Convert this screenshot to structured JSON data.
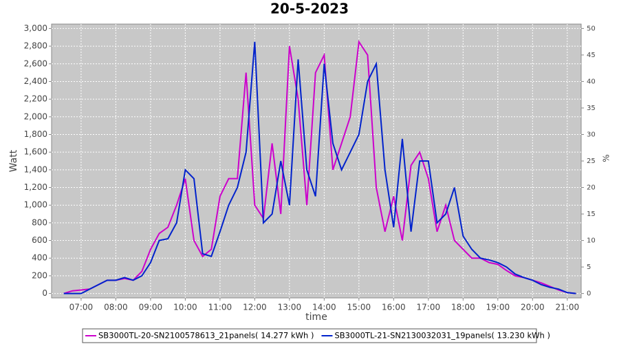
{
  "chart_data": {
    "type": "line",
    "title": "20-5-2023",
    "x_label": "time",
    "y_label": "Watt",
    "y2_label": "%",
    "x": [
      "06:30",
      "06:45",
      "07:00",
      "07:15",
      "07:30",
      "07:45",
      "08:00",
      "08:15",
      "08:30",
      "08:45",
      "09:00",
      "09:15",
      "09:30",
      "09:45",
      "10:00",
      "10:15",
      "10:30",
      "10:45",
      "11:00",
      "11:15",
      "11:30",
      "11:45",
      "12:00",
      "12:15",
      "12:30",
      "12:45",
      "13:00",
      "13:15",
      "13:30",
      "13:45",
      "14:00",
      "14:15",
      "14:30",
      "14:45",
      "15:00",
      "15:15",
      "15:30",
      "15:45",
      "16:00",
      "16:15",
      "16:30",
      "16:45",
      "17:00",
      "17:15",
      "17:30",
      "17:45",
      "18:00",
      "18:15",
      "18:30",
      "18:45",
      "19:00",
      "19:15",
      "19:30",
      "19:45",
      "20:00",
      "20:15",
      "20:30",
      "20:45",
      "21:00",
      "21:15"
    ],
    "series": [
      {
        "name": "SB3000TL-20-SN2100578613_21panels( 14.277 kWh )",
        "color": "#cc00cc",
        "values": [
          0,
          30,
          40,
          50,
          100,
          150,
          150,
          170,
          150,
          250,
          500,
          680,
          750,
          1000,
          1300,
          600,
          420,
          500,
          1100,
          1300,
          1300,
          2500,
          1000,
          850,
          1700,
          900,
          2800,
          2200,
          1000,
          2500,
          2700,
          1400,
          1700,
          2000,
          2850,
          2700,
          1200,
          700,
          1100,
          600,
          1450,
          1600,
          1300,
          700,
          1000,
          600,
          500,
          400,
          400,
          350,
          330,
          260,
          200,
          180,
          150,
          120,
          80,
          40,
          10,
          0
        ]
      },
      {
        "name": "SB3000TL-21-SN2130032031_19panels( 13.230 kWh )",
        "color": "#0022cc",
        "values": [
          0,
          0,
          0,
          50,
          100,
          150,
          150,
          180,
          150,
          200,
          350,
          600,
          620,
          800,
          1400,
          1300,
          450,
          420,
          700,
          1000,
          1200,
          1600,
          2850,
          800,
          900,
          1500,
          1000,
          2650,
          1400,
          1100,
          2600,
          1700,
          1400,
          1600,
          1800,
          2400,
          2600,
          1400,
          750,
          1750,
          700,
          1500,
          1500,
          800,
          900,
          1200,
          650,
          500,
          400,
          380,
          350,
          300,
          220,
          180,
          150,
          100,
          70,
          50,
          10,
          0
        ]
      }
    ],
    "xlim": [
      "06:09",
      "21:24"
    ],
    "xticks": [
      "07:00",
      "08:00",
      "09:00",
      "10:00",
      "11:00",
      "12:00",
      "13:00",
      "14:00",
      "15:00",
      "16:00",
      "17:00",
      "18:00",
      "19:00",
      "20:00",
      "21:00"
    ],
    "ylim": [
      -50,
      3050
    ],
    "yticks": [
      0,
      200,
      400,
      600,
      800,
      {
        "value": 1000,
        "label": "1,000"
      },
      {
        "value": 1200,
        "label": "1,200"
      },
      {
        "value": 1400,
        "label": "1,400"
      },
      {
        "value": 1600,
        "label": "1,600"
      },
      {
        "value": 1800,
        "label": "1,800"
      },
      {
        "value": 2000,
        "label": "2,000"
      },
      {
        "value": 2200,
        "label": "2,200"
      },
      {
        "value": 2400,
        "label": "2,400"
      },
      {
        "value": 2600,
        "label": "2,600"
      },
      {
        "value": 2800,
        "label": "2,800"
      },
      {
        "value": 3000,
        "label": "3,000"
      }
    ],
    "y2lim": [
      -0.83,
      50.83
    ],
    "y2ticks": [
      0,
      5,
      10,
      15,
      20,
      25,
      30,
      35,
      40,
      45,
      50
    ],
    "grid": true
  }
}
